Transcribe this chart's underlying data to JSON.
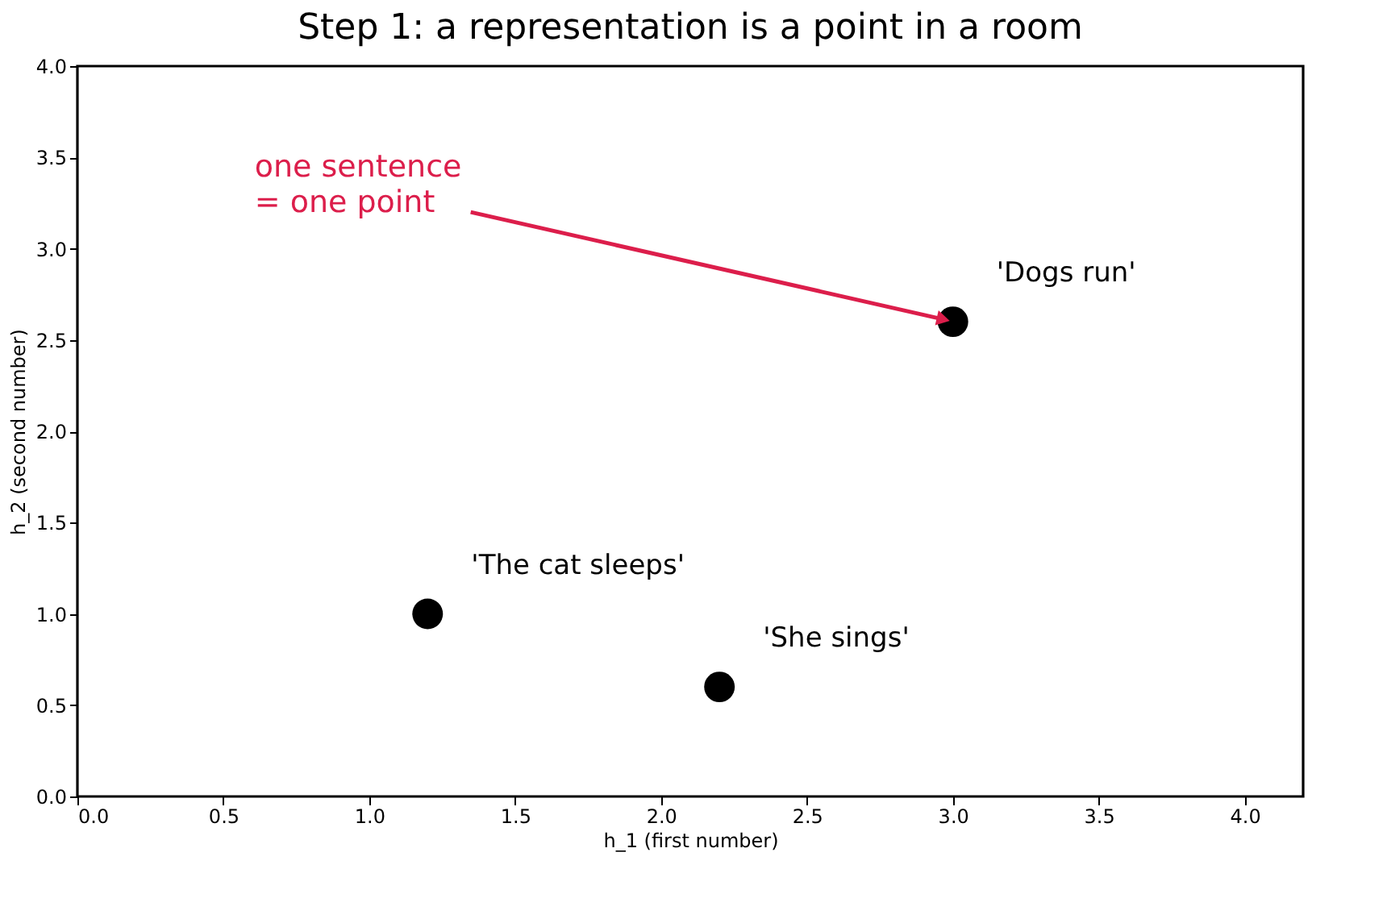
{
  "chart_data": {
    "type": "scatter",
    "title": "Step 1: a representation is a point in a room",
    "xlabel": "h_1  (first number)",
    "ylabel": "h_2  (second number)",
    "x": [
      1.2,
      2.2,
      3.0
    ],
    "series": [
      {
        "color": "#000000",
        "values": [
          1.0,
          0.6,
          2.6
        ]
      }
    ],
    "marker": "circle",
    "grid": false,
    "xlim": [
      0,
      4.2
    ],
    "ylim": [
      0,
      4
    ],
    "xticks": [
      {
        "value": 0,
        "label": "0.0"
      },
      0.5,
      {
        "value": 1,
        "label": "1.0"
      },
      1.5,
      {
        "value": 2,
        "label": "2.0"
      },
      2.5,
      {
        "value": 3,
        "label": "3.0"
      },
      3.5,
      {
        "value": 4,
        "label": "4.0"
      }
    ],
    "yticks": [
      {
        "value": 0,
        "label": "0.0"
      },
      0.5,
      {
        "value": 1,
        "label": "1.0"
      },
      1.5,
      {
        "value": 2,
        "label": "2.0"
      },
      2.5,
      {
        "value": 3,
        "label": "3.0"
      },
      3.5,
      {
        "value": 4,
        "label": "4.0"
      }
    ],
    "annotations": [
      {
        "text": "'The cat sleeps'",
        "x": 1.2,
        "y": 1.0
      },
      {
        "text": "'She sings'",
        "x": 2.2,
        "y": 0.6
      },
      {
        "text": "'Dogs run'",
        "x": 3.0,
        "y": 2.6
      },
      {
        "text": "one sentence\n= one point",
        "x": 3.0,
        "y": 2.6
      }
    ]
  }
}
